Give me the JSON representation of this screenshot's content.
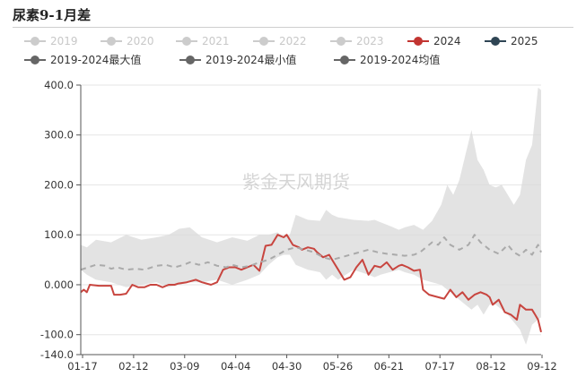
{
  "chart_data": {
    "type": "line",
    "title": "尿素9-1月差",
    "watermark": "紫金天风期货",
    "xlabel": "",
    "ylabel": "",
    "ylim": [
      -140,
      400
    ],
    "y_ticks": [
      {
        "value": 400,
        "label": "400.0"
      },
      {
        "value": 300,
        "label": "300.0"
      },
      {
        "value": 200,
        "label": "200.0"
      },
      {
        "value": 100,
        "label": "100.0"
      },
      {
        "value": 0,
        "label": "0.000"
      },
      {
        "value": -100,
        "label": "-100.0"
      },
      {
        "value": -140,
        "label": "-140.0"
      }
    ],
    "x_ticks": [
      "01-17",
      "02-12",
      "03-09",
      "04-04",
      "04-30",
      "05-26",
      "06-21",
      "07-17",
      "08-12",
      "09-12"
    ],
    "grid": "horizontal",
    "legend_position": "top",
    "legend": [
      {
        "name": "2019",
        "color": "#cccccc",
        "active": false
      },
      {
        "name": "2020",
        "color": "#cccccc",
        "active": false
      },
      {
        "name": "2021",
        "color": "#cccccc",
        "active": false
      },
      {
        "name": "2022",
        "color": "#cccccc",
        "active": false
      },
      {
        "name": "2023",
        "color": "#cccccc",
        "active": false
      },
      {
        "name": "2024",
        "color": "#c23531",
        "active": true
      },
      {
        "name": "2025",
        "color": "#2f4554",
        "active": true
      },
      {
        "name": "2019-2024最大值",
        "color": "#666666",
        "active": true
      },
      {
        "name": "2019-2024最小值",
        "color": "#666666",
        "active": true
      },
      {
        "name": "2019-2024均值",
        "color": "#666666",
        "active": true
      }
    ],
    "band": {
      "x": [
        0,
        4,
        10,
        20,
        30,
        40,
        50,
        58,
        65,
        72,
        80,
        90,
        100,
        110,
        118,
        124,
        130,
        134,
        138,
        142,
        150,
        158,
        162,
        166,
        170,
        180,
        190,
        194,
        198,
        204,
        210,
        214,
        220,
        226,
        232,
        238,
        242,
        246,
        250,
        254,
        258,
        262,
        266,
        270,
        274,
        278,
        282,
        286,
        290,
        294,
        298,
        302,
        304
      ],
      "upper": [
        80,
        75,
        90,
        85,
        100,
        90,
        95,
        100,
        112,
        115,
        95,
        85,
        95,
        88,
        100,
        100,
        105,
        95,
        100,
        140,
        130,
        128,
        150,
        140,
        135,
        130,
        128,
        130,
        125,
        118,
        110,
        115,
        120,
        110,
        128,
        160,
        200,
        180,
        210,
        260,
        310,
        250,
        230,
        200,
        195,
        200,
        180,
        160,
        180,
        250,
        280,
        395,
        390
      ],
      "lower": [
        30,
        20,
        10,
        5,
        -5,
        0,
        5,
        -5,
        0,
        5,
        5,
        10,
        0,
        10,
        20,
        40,
        55,
        60,
        60,
        40,
        30,
        25,
        10,
        20,
        10,
        30,
        20,
        15,
        20,
        25,
        30,
        25,
        20,
        10,
        5,
        0,
        -10,
        -20,
        -30,
        -40,
        -50,
        -40,
        -60,
        -40,
        -40,
        -50,
        -60,
        -75,
        -90,
        -120,
        -80,
        -70,
        -65
      ]
    },
    "series": [
      {
        "name": "2024",
        "color": "#c8453f",
        "x": [
          0,
          2,
          4,
          6,
          12,
          20,
          22,
          26,
          30,
          34,
          38,
          42,
          46,
          50,
          54,
          58,
          62,
          64,
          70,
          76,
          80,
          86,
          90,
          94,
          98,
          102,
          106,
          110,
          114,
          118,
          122,
          126,
          130,
          134,
          136,
          140,
          144,
          146,
          150,
          154,
          156,
          160,
          164,
          166,
          170,
          174,
          178,
          182,
          186,
          190,
          194,
          198,
          202,
          206,
          210,
          212,
          216,
          220,
          224,
          226,
          230,
          236,
          240,
          244,
          248,
          252,
          256,
          260,
          264,
          268,
          270,
          272,
          276,
          280,
          284,
          288,
          290,
          294,
          298,
          300,
          302,
          304
        ],
        "y": [
          -15,
          -10,
          -15,
          0,
          -2,
          -2,
          -20,
          -20,
          -18,
          0,
          -5,
          -5,
          0,
          0,
          -5,
          0,
          0,
          2,
          5,
          10,
          5,
          0,
          5,
          30,
          35,
          35,
          30,
          35,
          40,
          28,
          78,
          80,
          100,
          95,
          100,
          80,
          75,
          70,
          75,
          72,
          65,
          55,
          60,
          50,
          30,
          10,
          15,
          35,
          50,
          20,
          38,
          35,
          45,
          30,
          38,
          40,
          35,
          28,
          30,
          -10,
          -20,
          -25,
          -28,
          -10,
          -25,
          -15,
          -30,
          -20,
          -15,
          -20,
          -25,
          -40,
          -30,
          -55,
          -60,
          -70,
          -40,
          -50,
          -50,
          -60,
          -70,
          -95
        ]
      },
      {
        "name": "2019-2024均值",
        "color": "#aaaaaa",
        "x": [
          0,
          5,
          10,
          16,
          20,
          24,
          30,
          36,
          42,
          50,
          56,
          62,
          68,
          72,
          78,
          84,
          90,
          96,
          100,
          106,
          112,
          118,
          124,
          130,
          136,
          142,
          148,
          154,
          160,
          166,
          172,
          178,
          184,
          190,
          196,
          202,
          208,
          214,
          220,
          224,
          228,
          232,
          236,
          240,
          244,
          250,
          256,
          260,
          264,
          270,
          276,
          282,
          286,
          290,
          294,
          298,
          302,
          304
        ],
        "y": [
          30,
          35,
          40,
          38,
          32,
          35,
          30,
          32,
          30,
          38,
          40,
          35,
          40,
          45,
          40,
          45,
          38,
          35,
          40,
          35,
          38,
          45,
          50,
          60,
          70,
          75,
          70,
          65,
          55,
          50,
          55,
          60,
          65,
          70,
          65,
          62,
          60,
          58,
          60,
          65,
          75,
          85,
          80,
          95,
          80,
          70,
          80,
          100,
          85,
          70,
          62,
          80,
          65,
          58,
          70,
          60,
          80,
          65
        ]
      }
    ]
  }
}
